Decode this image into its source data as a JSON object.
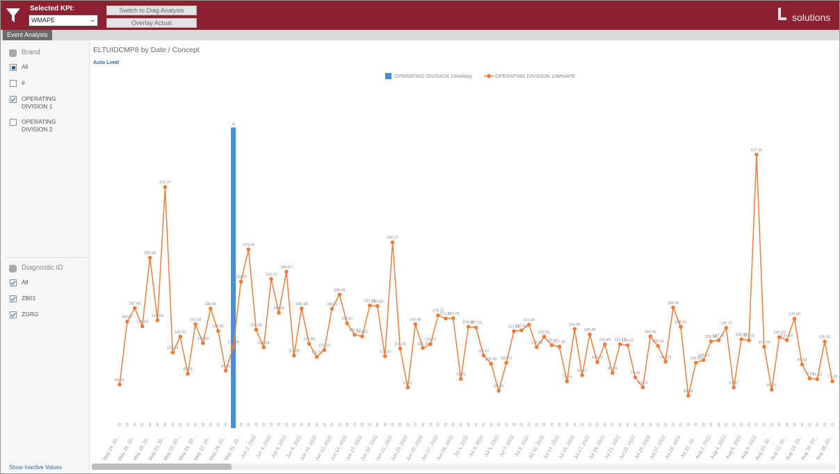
{
  "header": {
    "kpi_label": "Selected KPI:",
    "kpi_value": "WMAPE",
    "buttons": [
      "Switch to Diag Analysis",
      "Overlay Actual"
    ],
    "logo": "solutions"
  },
  "tab": "Event Analysis",
  "filters": [
    {
      "title": "Brand",
      "items": [
        {
          "label": "All",
          "state": "partial"
        },
        {
          "label": "#",
          "state": "unchecked"
        },
        {
          "label": "OPERATING DIVISION 1",
          "state": "checked"
        },
        {
          "label": "OPERATING DIVISION 2",
          "state": "unchecked"
        }
      ]
    },
    {
      "title": "Diagnostic ID",
      "items": [
        {
          "label": "All",
          "state": "checked"
        },
        {
          "label": "ZB01",
          "state": "checked"
        },
        {
          "label": "ZGRG",
          "state": "checked"
        }
      ]
    }
  ],
  "show_inactive": "Show Inactive Values",
  "auto_limit": "Auto Limit",
  "chart_data": {
    "type": "combo",
    "title": "ELTUIDCMP8 by Date /  Concept",
    "categories": [
      "May 14, 20...",
      null,
      "May 16, 20...",
      null,
      "May 18, 20...",
      null,
      "May 20, 20...",
      null,
      "May 22, 20...",
      null,
      "May 24, 20...",
      null,
      "May 27, 20...",
      null,
      "May 29, 20...",
      null,
      "May 31, 20...",
      null,
      "Jun 2, 2022",
      null,
      "Jun 4, 2022",
      null,
      "Jun 6, 2022",
      null,
      "Jun 8, 2022",
      null,
      "Jun 10, 2022",
      null,
      "Jun 12, 2022",
      null,
      "Jun 14, 2022",
      null,
      "Jun 17, 2022",
      null,
      "Jun 19, 2022",
      null,
      "Jun 21, 2022",
      null,
      "Jun 23, 2022",
      null,
      "Jun 25, 2022",
      null,
      "Jun 27, 2022",
      null,
      "Jun 29, 2022",
      null,
      "Jul 1, 2022",
      null,
      "Jul 3, 2022",
      null,
      "Jul 5, 2022",
      null,
      "Jul 7, 2022",
      null,
      "Jul 9, 2022",
      null,
      "Jul 11, 2022",
      null,
      "Jul 13, 2022",
      null,
      "Jul 15, 2022",
      null,
      "Jul 17, 2022",
      null,
      "Jul 19, 2022",
      null,
      "Jul 21, 2022",
      null,
      "Jul 23, 2022",
      null,
      "Jul 25, 2022",
      null,
      "Jul 27, 2022",
      null,
      "Jul 29, 2022",
      null,
      "Jul 31, 20...",
      null,
      "Aug 2, 2022",
      null,
      "Aug 4, 2022",
      null,
      "Aug 6, 2022",
      null,
      "Aug 8, 2022",
      null,
      "Aug 10, 20...",
      null,
      "Aug 12, 20...",
      null,
      "Aug 14, 20...",
      null,
      "Aug 16, 20...",
      null,
      "Aug 18, 20..."
    ],
    "series": [
      {
        "name": "OPERATING DIVISION 1/Holiday",
        "kind": "bar",
        "axis": "y2",
        "color": "#4a8fd6",
        "values": [
          0,
          0,
          0,
          0,
          0,
          0,
          0,
          0,
          0,
          0,
          0,
          0,
          0,
          0,
          0,
          4,
          0,
          0,
          0,
          0,
          0,
          0,
          0,
          0,
          0,
          0,
          0,
          0,
          0,
          0,
          0,
          0,
          0,
          0,
          0,
          0,
          0,
          0,
          0,
          0,
          0,
          0,
          0,
          0,
          0,
          0,
          0,
          0,
          0,
          0,
          0,
          0,
          0,
          0,
          0,
          0,
          0,
          0,
          0,
          0,
          0,
          0,
          0,
          0,
          0,
          0,
          0,
          0,
          0,
          0,
          0,
          0,
          0,
          0,
          0,
          0,
          0,
          0,
          0,
          0,
          0,
          0,
          0,
          0,
          0,
          0,
          0,
          0,
          0,
          0,
          0,
          0,
          0,
          0,
          0
        ]
      },
      {
        "name": "OPERATING DIVISION 1/WMAPE",
        "kind": "line",
        "color": "#ee7d3b",
        "values": [
          68.03,
          166.57,
          187.6,
          159.18,
          266.48,
          168.54,
          376.77,
          118.14,
          142.92,
          85.01,
          162.48,
          132.69,
          186.86,
          151.91,
          89.66,
          126.86,
          229.01,
          279.36,
          153.85,
          126.24,
          233.12,
          180.26,
          244.57,
          113.49,
          186.98,
          131.86,
          111.24,
          122.19,
          186.51,
          208.66,
          163.87,
          145.87,
          143.52,
          191.59,
          190.83,
          112.33,
          290.27,
          124.43,
          63.62,
          162.46,
          125.16,
          131.27,
          176.22,
          171.35,
          171.79,
          76.76,
          158.4,
          157.21,
          113.67,
          100.56,
          58.42,
          102.01,
          151.53,
          152.84,
          161.66,
          126.68,
          142.81,
          129.67,
          127.35,
          73.14,
          154.8,
          82.72,
          146.38,
          103.07,
          130.89,
          86.34,
          131.19,
          129.52,
          79.43,
          63.64,
          143.5,
          128.43,
          103.74,
          188.46,
          158.31,
          50.64,
          102.09,
          106.42,
          135.58,
          137.26,
          156.7,
          63.47,
          138.98,
          137.15,
          427.4,
          127.24,
          60.16,
          142.24,
          137.43,
          170.8,
          99.63,
          77.81,
          76.52,
          135.41,
          73.28
        ],
        "value_labels": [
          "68.03",
          "166.57",
          "187.60",
          "159.18",
          "266.48",
          "168.54",
          "376.77",
          "118.14",
          "142.92",
          "85.01",
          "162.48",
          "132.69",
          "186.86",
          "151.91",
          "89.66",
          "126.86",
          "229.01",
          "279.36",
          "153.85",
          "126.24",
          "233.12",
          "180.26",
          "244.57",
          "113.49",
          "186.98",
          "131.86",
          "111.24",
          "122.19",
          "186.51",
          "208.66",
          "163.87",
          "145.87",
          "143.52",
          "191.59",
          "190.83",
          "112.33",
          "290.27",
          "124.43",
          "63.62",
          "162.46",
          "125.16",
          "131.27",
          "176.22",
          "171.35",
          "171.79",
          "76.76",
          "158.40",
          "157.21",
          "113.67",
          "100.56",
          "58.42",
          "102.01",
          "151.53",
          "152.84",
          "161.66",
          "126.68",
          "142.81",
          "129.67",
          "127.35",
          "73.14",
          "154.80",
          "82.72",
          "146.38",
          "103.07",
          "130.89",
          "86.34",
          "131.19",
          "129.52",
          "79.43",
          "63.64",
          "143.50",
          "128.43",
          "103.74",
          "188.46",
          "158.31",
          "50.64",
          "102.09",
          "106.42",
          "135.58",
          "137.26",
          "156.70",
          "63.47",
          "138.98",
          "137.15",
          "427.40",
          "127.24",
          "60.16",
          "142.24",
          "137.43",
          "170.80",
          "99.63",
          "77.81",
          "76.52",
          "135.41",
          "73.28"
        ]
      }
    ],
    "ylim": [
      0,
      505
    ],
    "y2lim": [
      0,
      4.3
    ],
    "legend": "top"
  }
}
